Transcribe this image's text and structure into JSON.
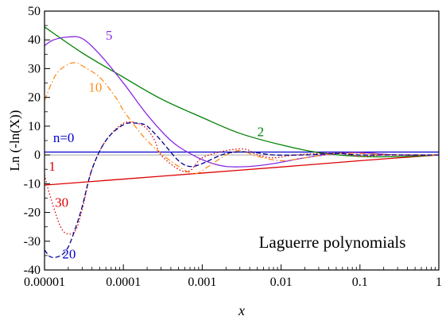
{
  "chart_data": {
    "type": "line",
    "title": "",
    "xlabel": "x",
    "ylabel": "Ln (-ln(X))",
    "x_scale": "log",
    "xlim": [
      1e-05,
      1
    ],
    "ylim": [
      -40,
      50
    ],
    "x_ticks": [
      1e-05,
      0.0001,
      0.001,
      0.01,
      0.1,
      1
    ],
    "x_tick_labels": [
      "0.00001",
      "0.0001",
      "0.001",
      "0.01",
      "0.1",
      "1"
    ],
    "y_ticks": [
      -40,
      -30,
      -20,
      -10,
      0,
      10,
      20,
      30,
      40,
      50
    ],
    "y_tick_labels": [
      "-40",
      "-30",
      "-20",
      "-10",
      "0",
      "10",
      "20",
      "30",
      "40",
      "50"
    ],
    "annotation": "Laguerre polynomials",
    "series": [
      {
        "name": "n=0",
        "color": "#0000cc",
        "dash": "solid",
        "x": [
          1e-05,
          1
        ],
        "y": [
          1,
          1
        ]
      },
      {
        "name": "1",
        "color": "#dd0000",
        "dash": "solid",
        "x": [
          1e-05,
          0.0001,
          0.001,
          0.01,
          0.1,
          1
        ],
        "y": [
          -10.5,
          -8.4,
          -6.3,
          -4.2,
          -2,
          0
        ]
      },
      {
        "name": "2",
        "color": "#008000",
        "dash": "solid",
        "x": [
          1e-05,
          3e-05,
          0.0001,
          0.0003,
          0.001,
          0.003,
          0.01,
          0.03,
          0.1,
          0.3,
          1
        ],
        "y": [
          44.5,
          35.5,
          27,
          19.5,
          13,
          7.5,
          3.5,
          0.8,
          -0.5,
          -0.6,
          0
        ]
      },
      {
        "name": "5",
        "color": "#8a2be2",
        "dash": "solid",
        "x": [
          1e-05,
          1.3e-05,
          2e-05,
          3e-05,
          5e-05,
          0.0001,
          0.0002,
          0.0004,
          0.0007,
          0.0012,
          0.002,
          0.004,
          0.008,
          0.02,
          0.05,
          0.1,
          0.3,
          1
        ],
        "y": [
          38,
          40,
          41,
          40.5,
          35,
          25,
          14,
          5,
          0.5,
          -2.5,
          -4,
          -4,
          -3,
          -1,
          0.5,
          0.8,
          0,
          0
        ]
      },
      {
        "name": "10",
        "color": "#ff8c1a",
        "dash": "dashdot",
        "x": [
          1e-05,
          1.4e-05,
          2e-05,
          2.5e-05,
          3e-05,
          5e-05,
          8e-05,
          0.0001,
          0.00015,
          0.0002,
          0.0003,
          0.0005,
          0.0008,
          0.0012,
          0.002,
          0.003,
          0.005,
          0.01,
          0.02,
          0.05,
          0.1,
          0.3,
          1
        ],
        "y": [
          19,
          28,
          31.5,
          32,
          31,
          27,
          20,
          15.5,
          9,
          5,
          0.5,
          -4,
          -6.5,
          -4,
          0,
          1.5,
          -0.5,
          -2,
          -1,
          0.5,
          0.5,
          0,
          0
        ]
      },
      {
        "name": "30",
        "color": "#dd0000",
        "dash": "dotted",
        "x": [
          1e-05,
          1.2e-05,
          1.6e-05,
          2e-05,
          2.5e-05,
          3e-05,
          4e-05,
          6e-05,
          0.0001,
          0.00015,
          0.0002,
          0.00025,
          0.0003,
          0.0005,
          0.0007,
          0.001,
          0.002,
          0.0035,
          0.005,
          0.008,
          0.015,
          0.03,
          0.06,
          0.1,
          0.2,
          0.5,
          1
        ],
        "y": [
          -7,
          -15,
          -25,
          -27.5,
          -26,
          -19,
          -5,
          5,
          11,
          11,
          9,
          5,
          0,
          -5,
          -5.5,
          -1,
          1.5,
          2,
          0,
          -1,
          0,
          0.5,
          0.5,
          -0.5,
          0,
          0,
          0
        ]
      },
      {
        "name": "20",
        "color": "#00008b",
        "dash": "dashed",
        "x": [
          1e-05,
          1.2e-05,
          1.6e-05,
          2e-05,
          2.5e-05,
          3e-05,
          4e-05,
          6e-05,
          0.0001,
          0.00015,
          0.0002,
          0.0003,
          0.0005,
          0.0007,
          0.001,
          0.002,
          0.004,
          0.008,
          0.02,
          0.05,
          0.1,
          0.3,
          1
        ],
        "y": [
          -33,
          -35.5,
          -35,
          -32,
          -25,
          -18,
          -5,
          5,
          10.5,
          11,
          10,
          5,
          -2,
          -4,
          -3,
          0.5,
          1,
          0,
          0,
          0.5,
          0,
          0,
          0
        ]
      }
    ],
    "series_labels": [
      {
        "text": "n=0",
        "color": "#0000cc",
        "x": 1.75e-05,
        "y": 4.5
      },
      {
        "text": "1",
        "color": "#dd0000",
        "x": 1.25e-05,
        "y": -5.5
      },
      {
        "text": "2",
        "color": "#008000",
        "x": 0.0055,
        "y": 6.5
      },
      {
        "text": "5",
        "color": "#8a2be2",
        "x": 6.6e-05,
        "y": 40
      },
      {
        "text": "10",
        "color": "#ff8c1a",
        "x": 4.4e-05,
        "y": 22
      },
      {
        "text": "30",
        "color": "#dd0000",
        "x": 1.65e-05,
        "y": -18
      },
      {
        "text": "20",
        "color": "#0000cc",
        "x": 2.05e-05,
        "y": -36
      }
    ]
  }
}
